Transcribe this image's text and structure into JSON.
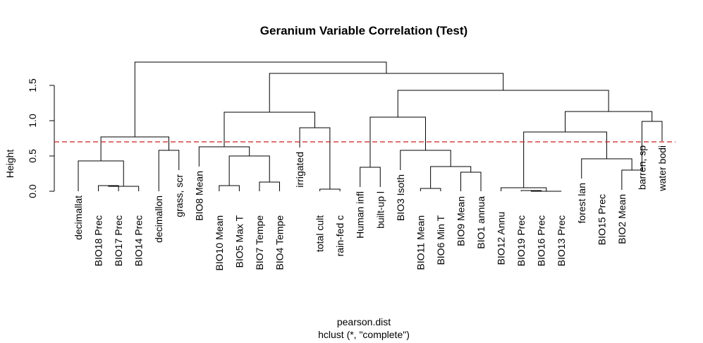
{
  "chart_data": {
    "type": "dendrogram",
    "title": "Geranium Variable Correlation (Test)",
    "xlabel": "pearson.dist",
    "sublabel": "hclust (*, \"complete\")",
    "ylabel": "Height",
    "ylim": [
      0,
      1.85
    ],
    "yticks": [
      {
        "value": 0.0,
        "label": "0.0"
      },
      {
        "value": 0.5,
        "label": "0.5"
      },
      {
        "value": 1.0,
        "label": "1.0"
      },
      {
        "value": 1.5,
        "label": "1.5"
      }
    ],
    "cut_height": 0.7,
    "leaf_label_offset": 0.28,
    "leaves": [
      "decimallat",
      "BIO18 Prec",
      "BIO17 Prec",
      "BIO14 Prec",
      "decimallon",
      "grass, scr",
      "BIO8 Mean",
      "BIO10 Mean",
      "BIO5 Max T",
      "BIO7 Tempe",
      "BIO4 Tempe",
      "irrigated",
      "total cult",
      "rain-fed c",
      "Human infl",
      "built-up l",
      "BIO3 Isoth",
      "BIO11 Mean",
      "BIO6 Min T",
      "BIO9 Mean",
      "BIO1 annua",
      "BIO12 Annu",
      "BIO19 Prec",
      "BIO16 Prec",
      "BIO13 Prec",
      "forest lan",
      "BIO15 Prec",
      "BIO2 Mean",
      "barren, sp",
      "water bodi"
    ],
    "leaf_heights": [
      0.28,
      0.0,
      0.0,
      0.0,
      0.28,
      0.58,
      0.63,
      0.0,
      0.0,
      0.0,
      0.0,
      0.9,
      0.0,
      0.0,
      0.34,
      0.34,
      0.58,
      0.0,
      0.0,
      0.27,
      0.27,
      0.05,
      0.0,
      0.0,
      0.0,
      0.46,
      0.3,
      0.3,
      0.99,
      0.99
    ],
    "merges": [
      [
        -23,
        -24,
        0.01
      ],
      [
        -2,
        -3,
        0.08
      ],
      [
        -8,
        -9,
        0.08
      ],
      [
        -18,
        -19,
        0.04
      ],
      [
        1,
        -25,
        0.0
      ],
      [
        -10,
        -11,
        0.13
      ],
      [
        2,
        -4,
        0.07
      ],
      [
        -13,
        -14,
        0.03
      ],
      [
        -22,
        5,
        0.05
      ],
      [
        -20,
        -21,
        0.27
      ],
      [
        -28,
        -29,
        0.3
      ],
      [
        -15,
        -16,
        0.34
      ],
      [
        4,
        10,
        0.35
      ],
      [
        7,
        -1,
        0.43
      ],
      [
        -26,
        11,
        0.46
      ],
      [
        3,
        6,
        0.5
      ],
      [
        -5,
        -6,
        0.58
      ],
      [
        -17,
        13,
        0.58
      ],
      [
        -7,
        16,
        0.63
      ],
      [
        12,
        18,
        1.05
      ],
      [
        -12,
        8,
        0.9
      ],
      [
        14,
        17,
        0.77
      ],
      [
        9,
        15,
        0.84
      ],
      [
        -29,
        -30,
        0.99
      ],
      [
        23,
        24,
        1.13
      ],
      [
        19,
        21,
        1.12
      ],
      [
        20,
        25,
        1.43
      ],
      [
        26,
        27,
        1.67
      ],
      [
        22,
        28,
        1.83
      ]
    ]
  }
}
